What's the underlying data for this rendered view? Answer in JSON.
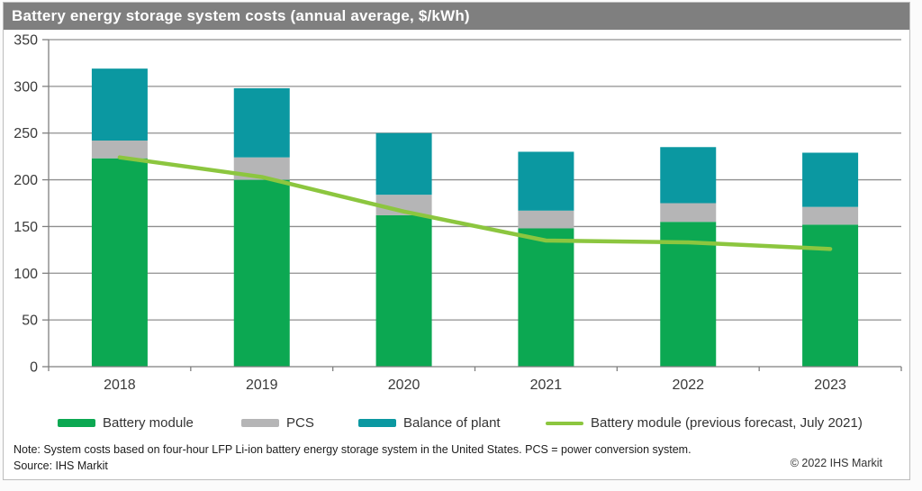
{
  "title": "Battery energy storage system costs (annual average, $/kWh)",
  "colors": {
    "title_bar_bg": "#7f7f7f",
    "title_text": "#ffffff",
    "grid": "#8f8f8f",
    "axis": "#7f7f7f",
    "tick_text": "#3a3a3a"
  },
  "chart_data": {
    "type": "bar",
    "stacked": true,
    "title": "Battery energy storage system costs (annual average, $/kWh)",
    "categories": [
      "2018",
      "2019",
      "2020",
      "2021",
      "2022",
      "2023"
    ],
    "series": [
      {
        "name": "Battery module",
        "type": "bar",
        "color": "#0ca852",
        "values": [
          223,
          200,
          162,
          148,
          155,
          152
        ]
      },
      {
        "name": "PCS",
        "type": "bar",
        "color": "#b5b5b6",
        "values": [
          19,
          24,
          22,
          19,
          20,
          19
        ]
      },
      {
        "name": "Balance of plant",
        "type": "bar",
        "color": "#0b98a1",
        "values": [
          77,
          74,
          66,
          63,
          60,
          58
        ]
      },
      {
        "name": "Battery module (previous forecast, July 2021)",
        "type": "line",
        "color": "#8cc63f",
        "values": [
          224,
          203,
          166,
          135,
          133,
          126
        ]
      }
    ],
    "stack_totals": [
      319,
      298,
      250,
      230,
      235,
      229
    ],
    "xlabel": "",
    "ylabel": "",
    "ylim": [
      0,
      350
    ],
    "ytick_interval": 50,
    "grid": true,
    "legend_position": "bottom"
  },
  "footer": {
    "note": "Note: System costs based on four-hour LFP Li-ion battery energy storage system in the United States. PCS = power conversion system.",
    "source": "Source: IHS Markit",
    "copyright": "© 2022 IHS Markit"
  }
}
